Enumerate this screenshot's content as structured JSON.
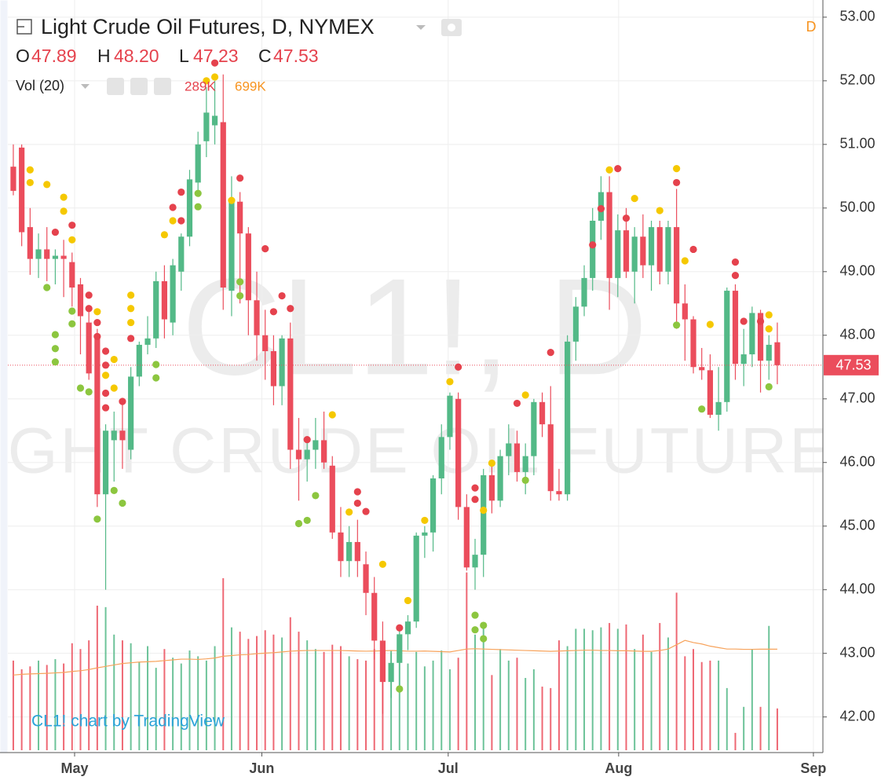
{
  "chart_data": {
    "type": "candlestick",
    "title": "Light Crude Oil Futures, D, NYMEX",
    "interval_badge": "D",
    "ohlc_legend": [
      {
        "label": "O",
        "value": "47.89"
      },
      {
        "label": "H",
        "value": "48.20"
      },
      {
        "label": "L",
        "value": "47.23"
      },
      {
        "label": "C",
        "value": "47.53"
      }
    ],
    "watermark": [
      "CL1!, D",
      "LIGHT CRUDE OIL FUTURES"
    ],
    "credit": "CL1! chart by TradingView",
    "up_color": "#53b987",
    "down_color": "#eb4d5c",
    "open": [
      50.65,
      50.95,
      49.7,
      49.2,
      49.35,
      49.2,
      49.25,
      49.15,
      48.8,
      48.2,
      47.95,
      45.5,
      46.35,
      46.5,
      46.2,
      47.35,
      47.85,
      47.95,
      48.85,
      48.2,
      49.0,
      49.55,
      50.4,
      51.05,
      51.3,
      51.35,
      48.7,
      50.1,
      49.6,
      48.55,
      48.0,
      47.75,
      47.2,
      47.95,
      46.2,
      46.05,
      46.2,
      46.35,
      45.95,
      44.9,
      44.45,
      44.75,
      44.4,
      43.95,
      43.2,
      42.55,
      42.85,
      43.3,
      43.5,
      44.85,
      44.9,
      45.75,
      46.4,
      47.0,
      45.3,
      44.35,
      44.55,
      45.8,
      45.4,
      46.1,
      46.3,
      45.85,
      46.1,
      46.95,
      46.6,
      45.55,
      45.5,
      47.9,
      48.45,
      48.9,
      49.8,
      50.25,
      48.9,
      49.65,
      49.0,
      49.55,
      49.1,
      49.7,
      49.0,
      49.7,
      48.5,
      48.25,
      47.5,
      47.45,
      46.75,
      46.95,
      48.7,
      47.55,
      47.7,
      48.35,
      47.6,
      47.89
    ],
    "high": [
      51.0,
      51.0,
      50.0,
      49.6,
      49.7,
      49.35,
      49.5,
      49.3,
      48.9,
      48.4,
      48.1,
      46.6,
      46.8,
      47.0,
      47.5,
      47.9,
      48.3,
      49.0,
      49.1,
      49.2,
      49.6,
      50.6,
      51.2,
      51.9,
      52.0,
      52.1,
      50.5,
      50.25,
      49.7,
      49.0,
      48.4,
      48.0,
      48.0,
      48.2,
      46.7,
      46.4,
      46.7,
      46.8,
      46.1,
      45.3,
      45.0,
      45.1,
      44.6,
      44.2,
      43.5,
      43.0,
      43.4,
      43.6,
      44.9,
      45.0,
      45.8,
      46.6,
      47.1,
      47.1,
      45.5,
      44.8,
      45.9,
      46.0,
      46.2,
      46.6,
      46.5,
      46.3,
      47.0,
      47.1,
      47.2,
      45.9,
      48.0,
      48.6,
      49.1,
      50.0,
      50.5,
      50.5,
      49.9,
      50.0,
      49.7,
      49.9,
      49.8,
      49.8,
      49.8,
      50.3,
      48.8,
      48.3,
      47.8,
      47.7,
      47.5,
      48.75,
      48.8,
      48.1,
      48.45,
      48.4,
      48.0,
      48.2
    ],
    "low": [
      50.2,
      49.4,
      48.95,
      48.9,
      48.85,
      48.8,
      48.6,
      48.45,
      47.7,
      47.3,
      45.3,
      44.0,
      45.7,
      45.9,
      46.05,
      47.2,
      47.7,
      47.8,
      47.95,
      48.0,
      48.7,
      49.4,
      50.2,
      50.8,
      51.0,
      48.4,
      48.3,
      48.5,
      48.0,
      47.6,
      47.3,
      46.9,
      46.9,
      45.9,
      45.4,
      45.7,
      45.9,
      45.9,
      44.8,
      44.2,
      44.2,
      44.2,
      43.6,
      42.9,
      42.05,
      42.3,
      42.5,
      43.05,
      43.4,
      44.5,
      44.6,
      45.5,
      46.2,
      45.1,
      44.3,
      44.0,
      44.2,
      45.2,
      45.3,
      45.8,
      45.7,
      45.5,
      45.8,
      46.4,
      45.4,
      45.4,
      45.4,
      47.6,
      48.3,
      48.7,
      49.5,
      48.4,
      48.6,
      48.9,
      48.5,
      48.9,
      48.7,
      48.8,
      48.8,
      48.1,
      47.6,
      47.4,
      47.3,
      46.7,
      46.5,
      46.8,
      47.3,
      47.2,
      47.5,
      47.1,
      47.3,
      47.23
    ],
    "close": [
      50.27,
      49.62,
      49.2,
      49.35,
      49.2,
      49.25,
      49.2,
      48.75,
      48.3,
      47.4,
      45.5,
      46.5,
      46.5,
      46.35,
      47.35,
      47.85,
      47.95,
      48.85,
      48.25,
      49.1,
      49.55,
      50.45,
      51.0,
      51.5,
      51.45,
      48.75,
      50.1,
      49.6,
      48.55,
      48.0,
      47.75,
      47.2,
      47.95,
      46.2,
      46.05,
      46.2,
      46.35,
      46.0,
      44.9,
      44.45,
      44.75,
      44.45,
      43.95,
      43.2,
      42.55,
      42.85,
      43.3,
      43.5,
      44.85,
      44.9,
      45.75,
      46.4,
      47.05,
      45.3,
      44.35,
      44.55,
      45.8,
      45.4,
      46.1,
      46.3,
      45.85,
      46.1,
      46.95,
      46.6,
      45.55,
      45.5,
      47.9,
      48.45,
      48.9,
      49.8,
      50.25,
      48.9,
      49.65,
      49.0,
      49.55,
      49.1,
      49.7,
      49.0,
      49.7,
      48.5,
      48.25,
      47.5,
      47.45,
      46.75,
      46.95,
      48.7,
      47.55,
      47.7,
      48.35,
      47.6,
      47.85,
      47.53
    ],
    "xlim": [
      -0.65,
      96.43
    ],
    "xticks": [
      {
        "value": 7.3,
        "label": "May"
      },
      {
        "value": 29.6,
        "label": "Jun"
      },
      {
        "value": 51.8,
        "label": "Jul"
      },
      {
        "value": 72.1,
        "label": "Aug"
      },
      {
        "value": 95.3,
        "label": "Sep"
      }
    ],
    "ylim": [
      41.44,
      53.27
    ],
    "yticks": [
      {
        "value": 42,
        "label": "42.00"
      },
      {
        "value": 43,
        "label": "43.00"
      },
      {
        "value": 44,
        "label": "44.00"
      },
      {
        "value": 45,
        "label": "45.00"
      },
      {
        "value": 46,
        "label": "46.00"
      },
      {
        "value": 47,
        "label": "47.00"
      },
      {
        "value": 48,
        "label": "48.00"
      },
      {
        "value": 49,
        "label": "49.00"
      },
      {
        "value": 50,
        "label": "50.00"
      },
      {
        "value": 51,
        "label": "51.00"
      },
      {
        "value": 52,
        "label": "52.00"
      },
      {
        "value": 53,
        "label": "53.00"
      }
    ],
    "grid": true,
    "last_price": {
      "value": 47.53,
      "label": "47.53"
    },
    "volume": {
      "name": "Vol (20)",
      "ylim": [
        0,
        1250000
      ],
      "values": [
        620000,
        560000,
        580000,
        620000,
        590000,
        630000,
        600000,
        740000,
        700000,
        760000,
        1000000,
        990000,
        800000,
        760000,
        740000,
        610000,
        720000,
        570000,
        700000,
        640000,
        600000,
        690000,
        650000,
        620000,
        720000,
        1190000,
        850000,
        820000,
        770000,
        790000,
        830000,
        800000,
        780000,
        920000,
        820000,
        760000,
        700000,
        680000,
        730000,
        720000,
        650000,
        630000,
        620000,
        700000,
        640000,
        690000,
        620000,
        600000,
        680000,
        580000,
        620000,
        690000,
        560000,
        640000,
        1230000,
        800000,
        850000,
        520000,
        700000,
        620000,
        640000,
        500000,
        560000,
        440000,
        430000,
        760000,
        720000,
        840000,
        840000,
        830000,
        850000,
        880000,
        840000,
        870000,
        700000,
        800000,
        680000,
        880000,
        780000,
        1090000,
        650000,
        700000,
        610000,
        620000,
        620000,
        430000,
        120000,
        300000,
        700000,
        300000,
        860000,
        289000
      ],
      "last_label": "289K",
      "ma_color": "#f7a35c",
      "ma_values": [
        520000,
        525000,
        528000,
        530000,
        532000,
        535000,
        538000,
        545000,
        550000,
        558000,
        570000,
        580000,
        590000,
        600000,
        605000,
        610000,
        612000,
        615000,
        620000,
        625000,
        630000,
        630000,
        628000,
        632000,
        638000,
        650000,
        655000,
        660000,
        662000,
        668000,
        672000,
        675000,
        680000,
        685000,
        688000,
        690000,
        690000,
        690000,
        690000,
        690000,
        688000,
        686000,
        685000,
        686000,
        688000,
        690000,
        688000,
        685000,
        685000,
        686000,
        684000,
        682000,
        680000,
        690000,
        700000,
        702000,
        700000,
        698000,
        696000,
        694000,
        692000,
        690000,
        688000,
        686000,
        684000,
        686000,
        688000,
        690000,
        692000,
        692000,
        690000,
        690000,
        688000,
        688000,
        686000,
        684000,
        684000,
        690000,
        700000,
        730000,
        760000,
        745000,
        735000,
        720000,
        710000,
        700000,
        700000,
        698000,
        698000,
        699000,
        699000,
        699000
      ],
      "ma_label": "699K"
    },
    "dots": [
      {
        "color": "#f5c800",
        "x": [
          2,
          2,
          4,
          6,
          6,
          7,
          10,
          12,
          12,
          11,
          14,
          14,
          14,
          18,
          19,
          23,
          24,
          26,
          38,
          40,
          44,
          47,
          49,
          52,
          56,
          57,
          61,
          71,
          74,
          77,
          79,
          80,
          83,
          90,
          90
        ],
        "values": [
          50.6,
          50.4,
          50.37,
          50.17,
          49.95,
          49.5,
          48.37,
          47.62,
          47.17,
          47.37,
          48.63,
          48.42,
          48.2,
          49.58,
          49.8,
          52.0,
          52.06,
          50.12,
          46.75,
          45.22,
          44.4,
          43.83,
          45.09,
          47.27,
          45.25,
          45.99,
          47.06,
          50.6,
          50.15,
          49.96,
          50.62,
          49.17,
          48.17,
          48.32,
          48.1
        ]
      },
      {
        "color": "#e5424d",
        "x": [
          5,
          7,
          9,
          9,
          10,
          10,
          11,
          11,
          11,
          11,
          13,
          14,
          19,
          20,
          20,
          24,
          27,
          30,
          31,
          32,
          33,
          35,
          41,
          41,
          42,
          46,
          53,
          55,
          55,
          60,
          64,
          69,
          70,
          72,
          73,
          79,
          81,
          86,
          86,
          87,
          89
        ],
        "values": [
          49.62,
          49.73,
          48.63,
          48.42,
          48.2,
          47.98,
          47.75,
          47.53,
          47.09,
          46.86,
          46.96,
          47.95,
          50.01,
          50.25,
          49.8,
          52.28,
          50.47,
          49.36,
          48.37,
          48.62,
          48.42,
          46.36,
          45.54,
          45.36,
          45.23,
          43.4,
          47.5,
          45.6,
          45.42,
          46.93,
          47.73,
          49.42,
          49.99,
          50.62,
          49.84,
          50.4,
          49.35,
          49.15,
          48.94,
          48.22,
          48.22
        ]
      },
      {
        "color": "#8cc63f",
        "x": [
          4,
          5,
          5,
          5,
          7,
          7,
          8,
          9,
          10,
          12,
          13,
          17,
          17,
          22,
          22,
          27,
          27,
          34,
          35,
          36,
          46,
          55,
          55,
          56,
          56,
          61,
          79,
          82,
          90
        ],
        "values": [
          48.75,
          48.01,
          47.79,
          47.58,
          48.38,
          48.18,
          47.17,
          47.11,
          45.11,
          45.56,
          45.36,
          47.54,
          47.33,
          50.23,
          50.02,
          48.84,
          48.62,
          45.04,
          45.09,
          45.48,
          42.44,
          43.6,
          43.37,
          43.44,
          43.23,
          45.72,
          48.16,
          46.84,
          47.19
        ]
      }
    ]
  }
}
